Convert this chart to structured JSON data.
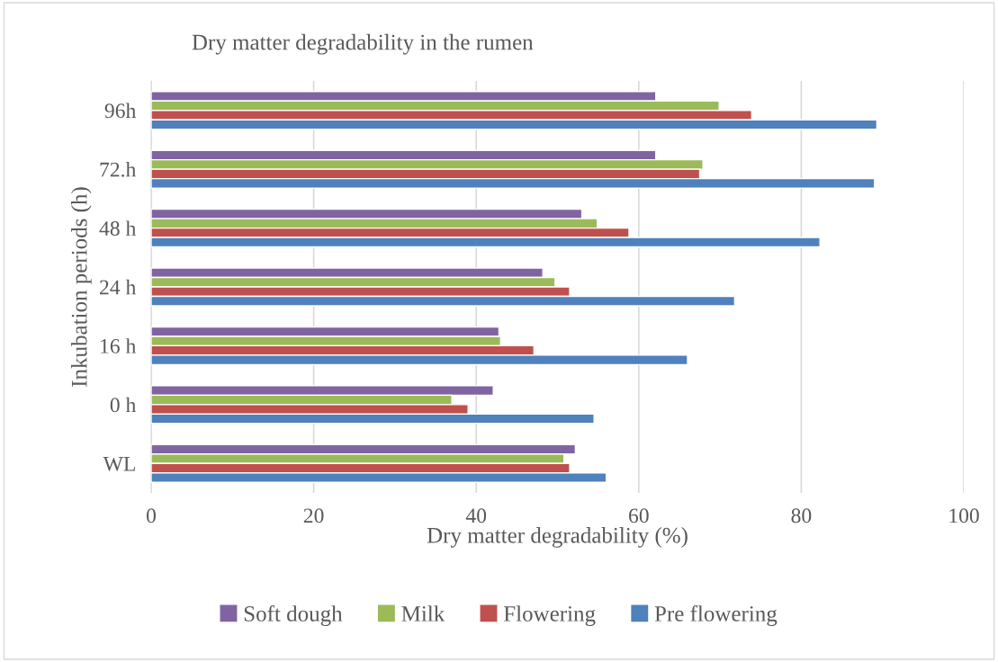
{
  "chart_data": {
    "type": "bar",
    "orientation": "horizontal",
    "title": "Dry matter degradability in the rumen",
    "xlabel": "Dry matter degradability (%)",
    "ylabel": "Inkubation periods (h)",
    "categories": [
      "96h",
      "72.h",
      "48 h",
      "24 h",
      "16 h",
      "0 h",
      "WL"
    ],
    "series": [
      {
        "name": "Soft dough",
        "color": "#8064a2",
        "values": [
          62.1,
          62.1,
          53.0,
          48.2,
          42.8,
          42.1,
          52.2
        ]
      },
      {
        "name": "Milk",
        "color": "#9bbb59",
        "values": [
          69.9,
          67.9,
          54.9,
          49.7,
          43.0,
          37.0,
          50.8
        ]
      },
      {
        "name": "Flowering",
        "color": "#c0504d",
        "values": [
          73.9,
          67.5,
          58.8,
          51.5,
          47.1,
          39.0,
          51.5
        ]
      },
      {
        "name": "Pre flowering",
        "color": "#4f81bd",
        "values": [
          89.3,
          89.0,
          82.3,
          71.8,
          66.0,
          54.5,
          56.0
        ]
      }
    ],
    "xlim": [
      0,
      100
    ],
    "xticks": [
      0,
      20,
      40,
      60,
      80,
      100
    ],
    "grid": "x",
    "legend": "bottom"
  }
}
